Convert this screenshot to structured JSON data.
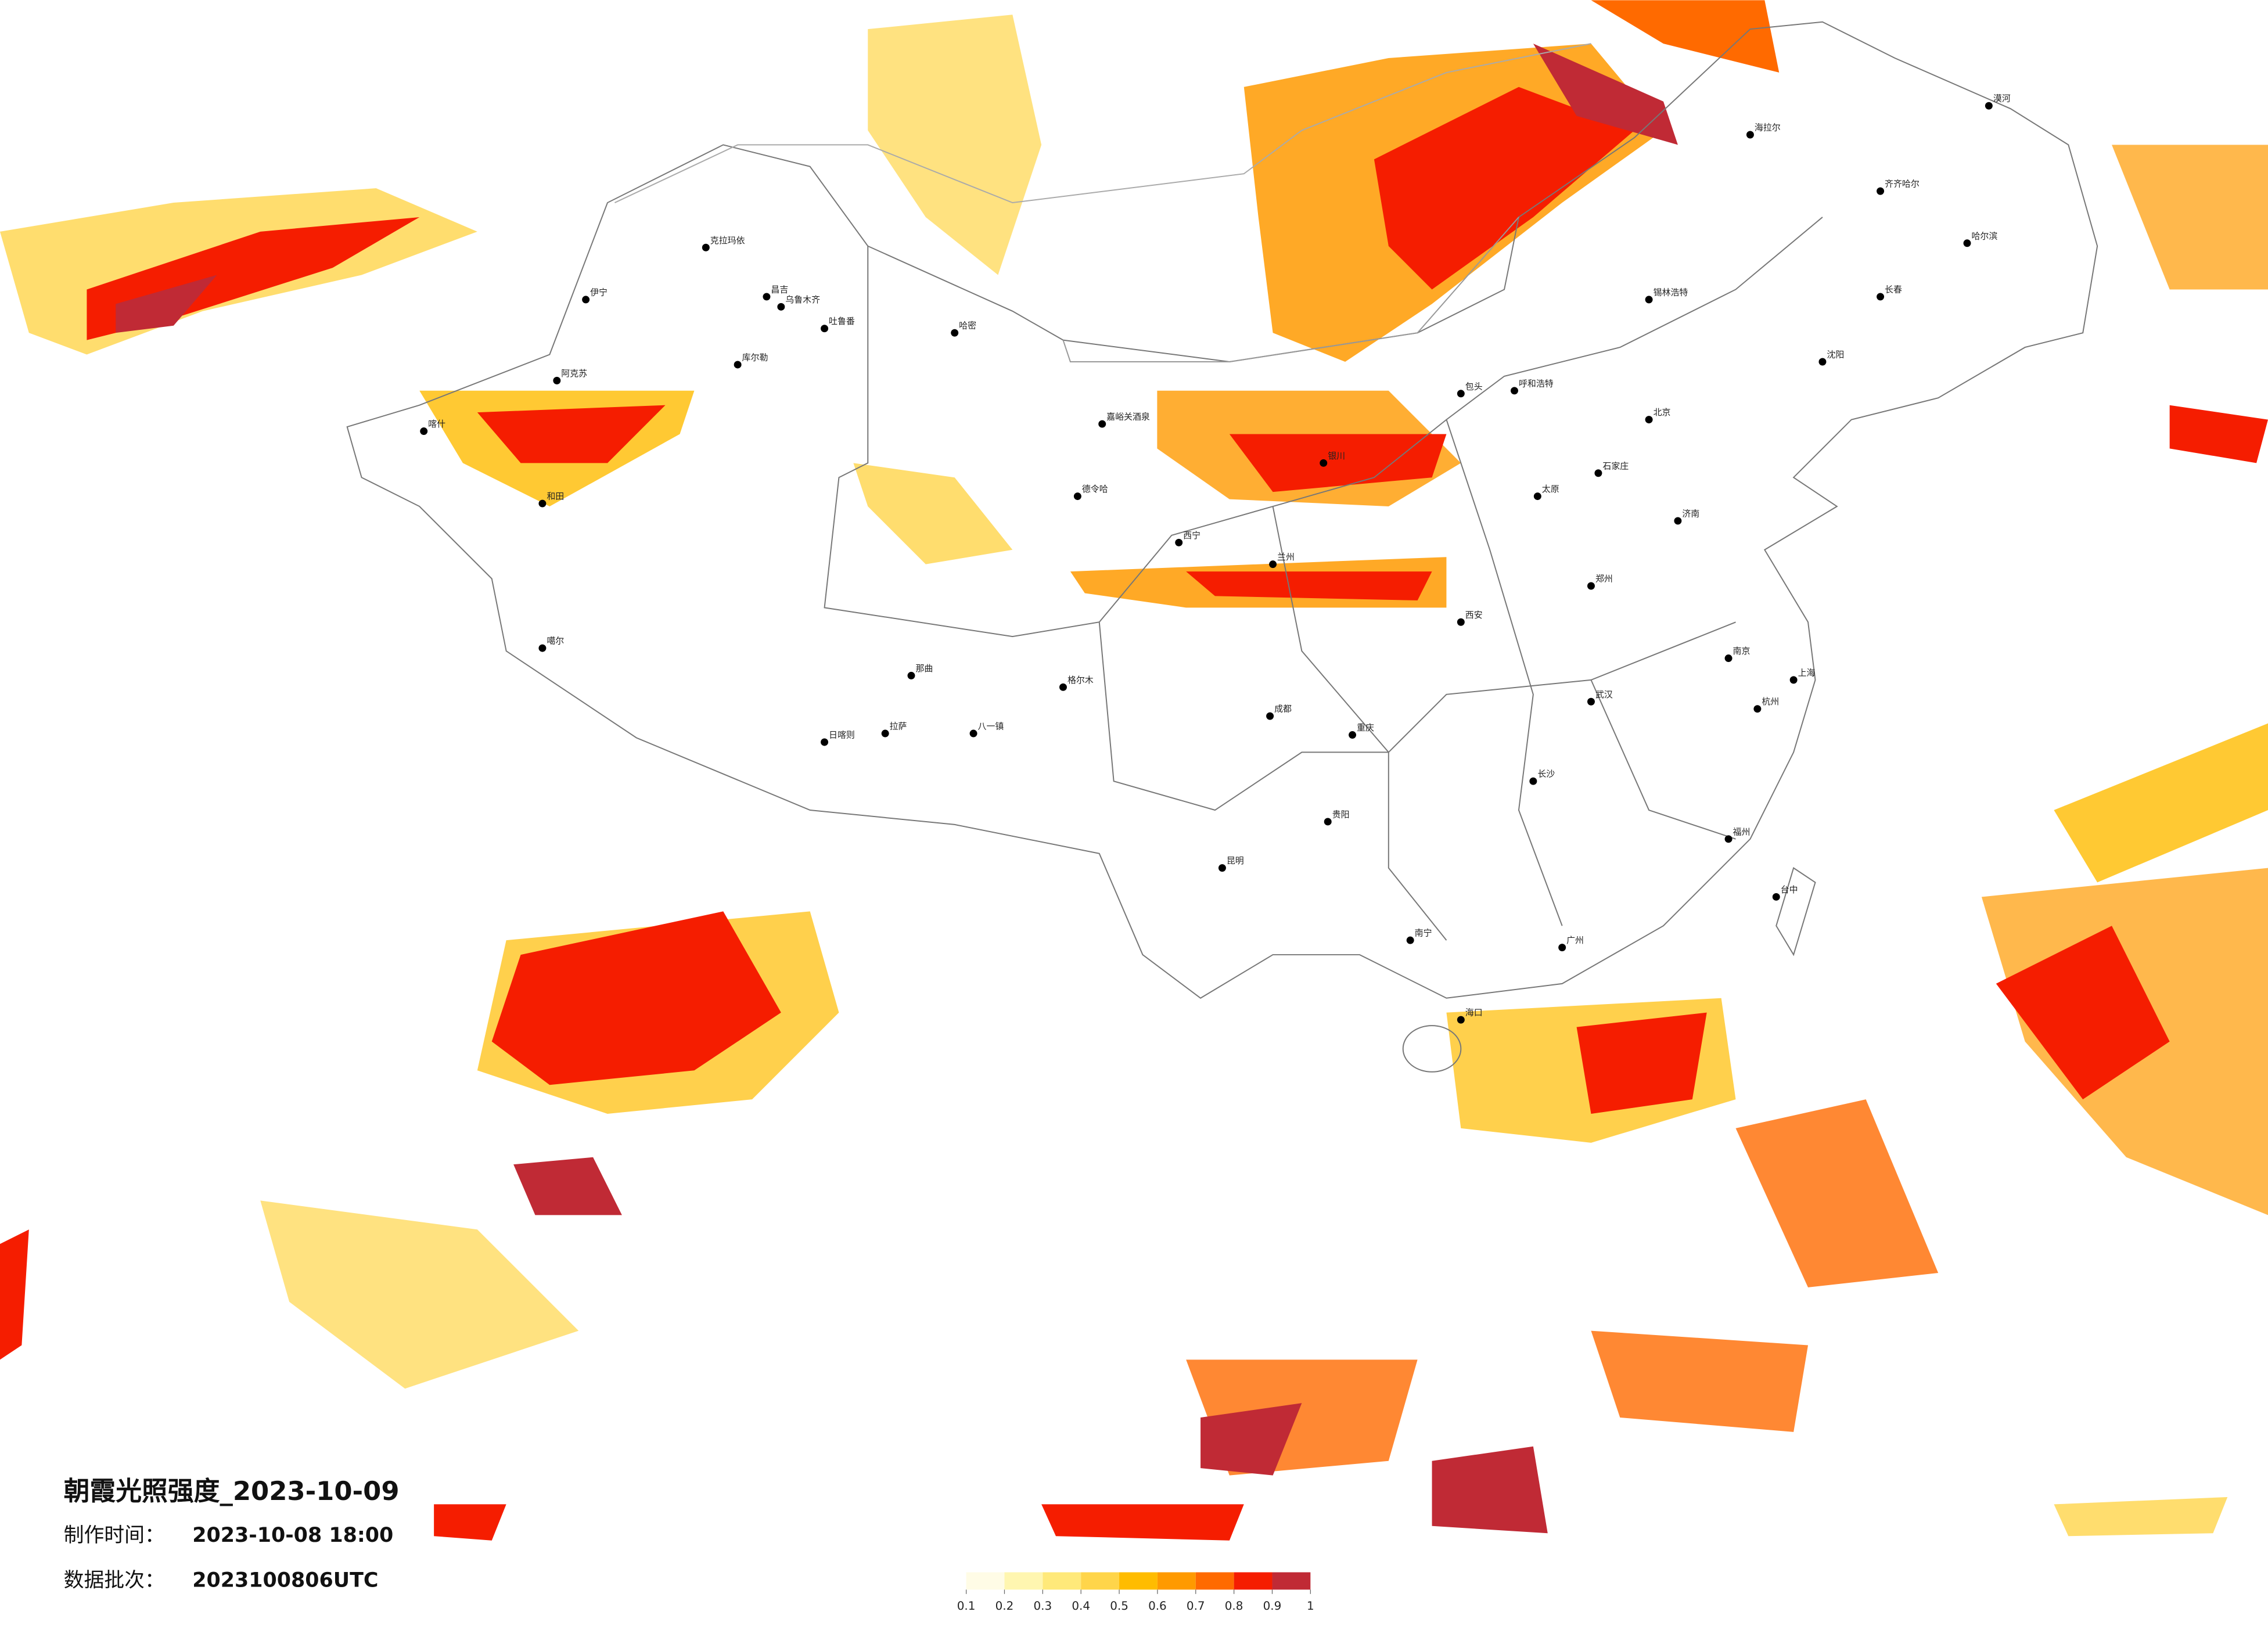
{
  "header": {
    "title": "朝霞光照强度_2023-10-09",
    "made_label": "制作时间：",
    "made_value": "2023-10-08 18:00",
    "batch_label": "数据批次：",
    "batch_value": "2023100806UTC"
  },
  "legend": {
    "ticks": [
      0.1,
      0.2,
      0.3,
      0.4,
      0.5,
      0.6,
      0.7,
      0.8,
      0.9,
      1
    ],
    "colors": [
      "#fffce6",
      "#fff6b0",
      "#ffe97a",
      "#ffd54a",
      "#ffbc00",
      "#ff9a00",
      "#ff6a00",
      "#f51d00",
      "#c02a35"
    ]
  },
  "cities": [
    "克拉玛依",
    "乌鲁木齐",
    "昌吉",
    "吐鲁番",
    "哈密",
    "库尔勒",
    "伊宁",
    "阿克苏",
    "喀什",
    "和田",
    "嘉峪关酒泉",
    "德令哈",
    "噶尔",
    "日喀则",
    "拉萨",
    "八一镇",
    "那曲",
    "格尔木",
    "呼和浩特",
    "包头",
    "锡林浩特",
    "海拉尔",
    "漠河",
    "齐齐哈尔",
    "哈尔滨",
    "长春",
    "沈阳",
    "北京",
    "石家庄",
    "太原",
    "济南",
    "郑州",
    "西安",
    "兰州",
    "西宁",
    "银川",
    "成都",
    "重庆",
    "贵阳",
    "昆明",
    "南宁",
    "广州",
    "长沙",
    "武汉",
    "南京",
    "上海",
    "杭州",
    "福州",
    "台中",
    "海口"
  ]
}
